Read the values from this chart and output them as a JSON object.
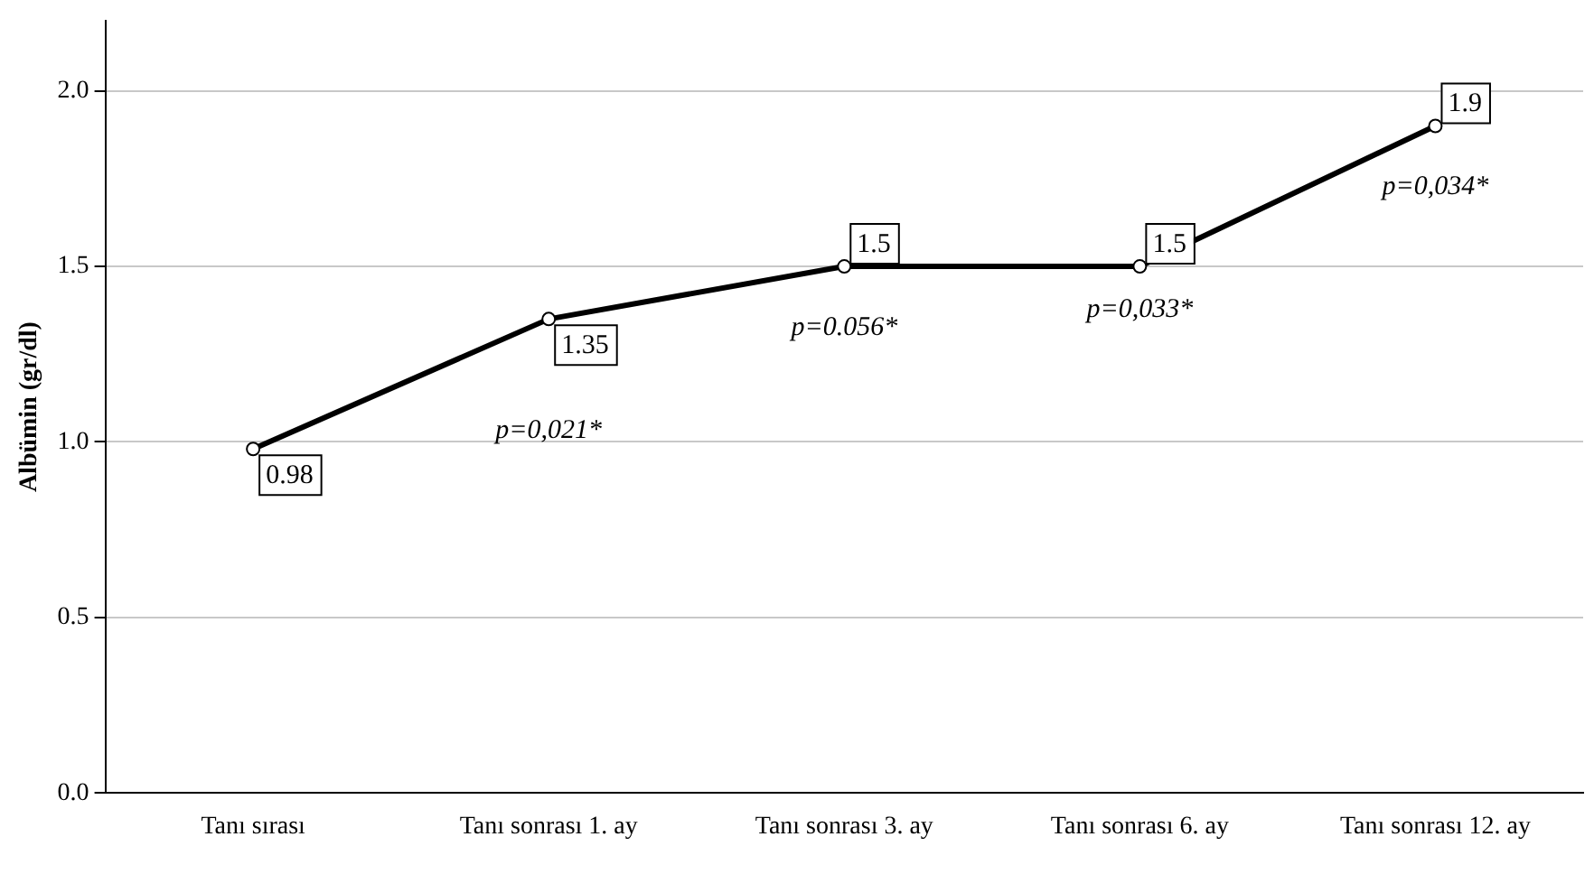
{
  "chart_data": {
    "type": "line",
    "ylabel": "Albümin (gr/dl)",
    "categories": [
      "Tanı sırası",
      "Tanı sonrası 1. ay",
      "Tanı sonrası 3. ay",
      "Tanı sonrası 6. ay",
      "Tanı sonrası 12. ay"
    ],
    "series": [
      {
        "color": "#000000",
        "values": [
          0.98,
          1.35,
          1.5,
          1.5,
          1.9
        ]
      }
    ],
    "ylim": [
      0,
      2.2
    ],
    "yticks": [
      {
        "value": 0,
        "label": "0.0"
      },
      {
        "value": 0.5,
        "label": "0.5"
      },
      {
        "value": 1,
        "label": "1.0"
      },
      {
        "value": 1.5,
        "label": "1.5"
      },
      {
        "value": 2,
        "label": "2.0"
      }
    ],
    "grid": "y",
    "legend": false,
    "marker": "circle",
    "line_style": "solid",
    "data_labels": true,
    "annotations": [
      "p=0,021*",
      "p=0.056*",
      "p=0,033*",
      "p=0,034*"
    ]
  }
}
